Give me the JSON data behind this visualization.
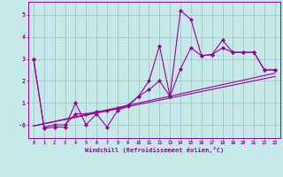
{
  "background_color": "#c5e8e8",
  "plot_bg_color": "#c5e8e8",
  "line_color": "#990099",
  "grid_color": "#a0c8c8",
  "tick_label_color": "#990099",
  "xlabel": "Windchill (Refroidissement éolien,°C)",
  "xlabel_color": "#990099",
  "xlim_min": -0.5,
  "xlim_max": 23.5,
  "ylim_min": -0.6,
  "ylim_max": 5.6,
  "ytick_vals": [
    0,
    1,
    2,
    3,
    4,
    5
  ],
  "ytick_labels": [
    "-0",
    "1",
    "2",
    "3",
    "4",
    "5"
  ],
  "xtick_labels": [
    "0",
    "1",
    "2",
    "3",
    "4",
    "5",
    "6",
    "7",
    "8",
    "9",
    "10",
    "11",
    "12",
    "13",
    "14",
    "15",
    "16",
    "17",
    "18",
    "19",
    "20",
    "21",
    "22",
    "23"
  ],
  "series1_x": [
    0,
    1,
    2,
    3,
    4,
    5,
    6,
    7,
    8,
    9,
    10,
    11,
    12,
    13,
    14,
    15,
    16,
    17,
    18,
    19,
    20,
    21,
    22,
    23
  ],
  "series1_y": [
    3.0,
    -0.15,
    -0.1,
    -0.1,
    1.0,
    0.0,
    0.5,
    -0.1,
    0.65,
    0.85,
    1.3,
    2.0,
    3.6,
    1.3,
    5.2,
    4.8,
    3.15,
    3.2,
    3.85,
    3.3,
    3.3,
    3.3,
    2.5,
    2.5
  ],
  "series2_x": [
    0,
    1,
    2,
    3,
    4,
    5,
    6,
    7,
    8,
    9,
    10,
    11,
    12,
    13,
    14,
    15,
    16,
    17,
    18,
    19,
    20,
    21,
    22,
    23
  ],
  "series2_y": [
    3.0,
    -0.1,
    0.0,
    0.0,
    0.5,
    0.5,
    0.6,
    0.65,
    0.75,
    0.9,
    1.3,
    1.6,
    2.0,
    1.3,
    2.55,
    3.5,
    3.15,
    3.2,
    3.5,
    3.3,
    3.3,
    3.3,
    2.5,
    2.5
  ],
  "series3_x": [
    0,
    23
  ],
  "series3_y": [
    -0.05,
    2.35
  ],
  "series4_x": [
    0,
    23
  ],
  "series4_y": [
    -0.05,
    2.2
  ],
  "marker": "D",
  "marker_size": 2.2,
  "line_width": 0.8
}
